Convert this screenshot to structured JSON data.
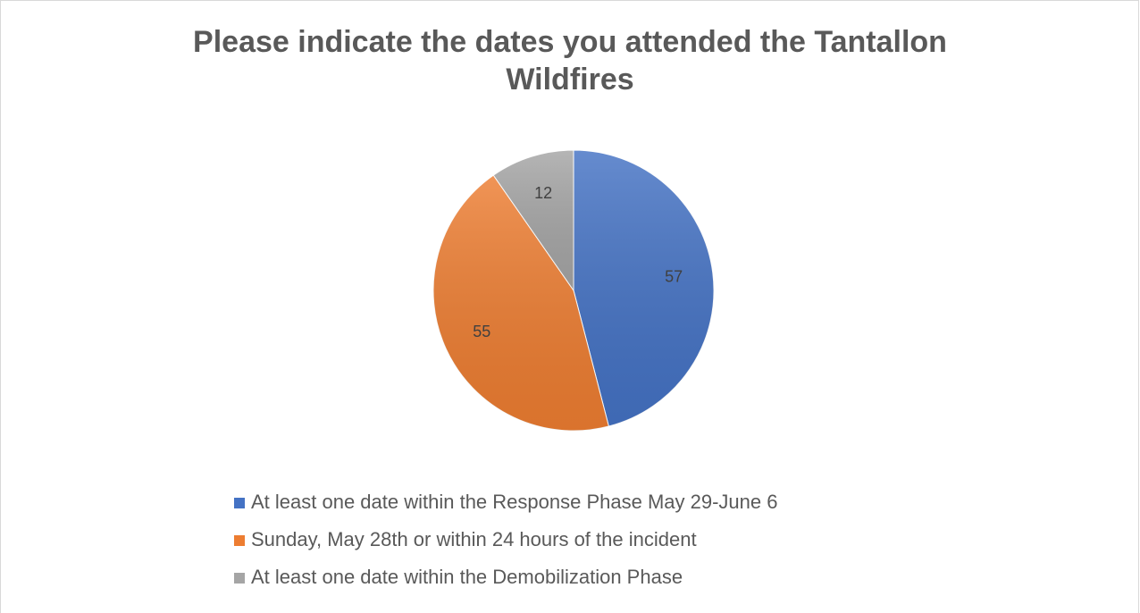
{
  "chart_data": {
    "type": "pie",
    "title": "Please indicate the dates you attended the Tantallon Wildfires",
    "categories": [
      "At least one date within the Response Phase May 29-June 6",
      "Sunday, May 28th or within 24 hours of the incident",
      "At least one date within the Demobilization Phase"
    ],
    "values": [
      57,
      55,
      12
    ],
    "colors": [
      "#4472c4",
      "#ed7d31",
      "#a5a5a5"
    ]
  }
}
